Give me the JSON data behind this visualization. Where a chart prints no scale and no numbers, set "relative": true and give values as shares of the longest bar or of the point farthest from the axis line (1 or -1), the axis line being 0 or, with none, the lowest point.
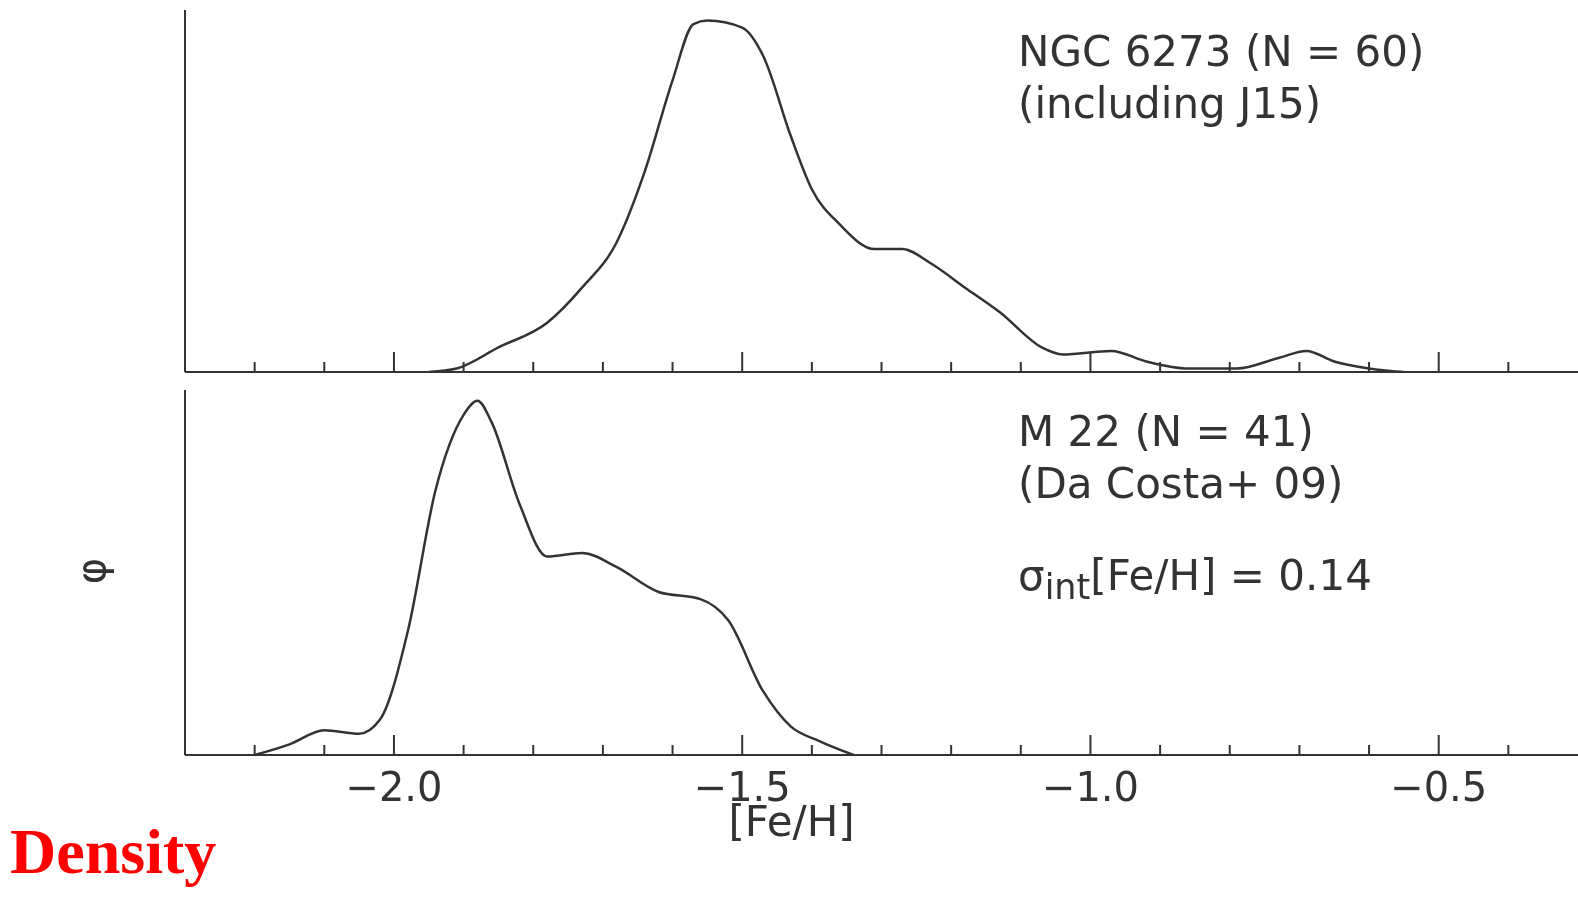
{
  "chart_data": [
    {
      "type": "line",
      "relative": true,
      "xlim": [
        -2.3,
        -0.3
      ],
      "tick_labels": false,
      "marker": "none",
      "line_style": "solid",
      "xticks": [
        {
          "value": -2.2,
          "label": null
        },
        {
          "value": -2.1,
          "label": null
        },
        -2,
        {
          "value": -1.9,
          "label": null
        },
        {
          "value": -1.8,
          "label": null
        },
        {
          "value": -1.7,
          "label": null
        },
        {
          "value": -1.6,
          "label": null
        },
        -1.5,
        {
          "value": -1.4,
          "label": null
        },
        {
          "value": -1.3,
          "label": null
        },
        {
          "value": -1.2,
          "label": null
        },
        {
          "value": -1.1,
          "label": null
        },
        -1,
        {
          "value": -0.9,
          "label": null
        },
        {
          "value": -0.8,
          "label": null
        },
        {
          "value": -0.7,
          "label": null
        },
        {
          "value": -0.6,
          "label": null
        },
        -0.5,
        {
          "value": -0.4,
          "label": null
        }
      ],
      "series": [
        {
          "color": "#333333",
          "x": [
            -1.95,
            -1.91,
            -1.85,
            -1.78,
            -1.73,
            -1.68,
            -1.64,
            -1.6,
            -1.57,
            -1.55,
            -1.5,
            -1.47,
            -1.43,
            -1.4,
            -1.36,
            -1.31,
            -1.27,
            -1.23,
            -1.18,
            -1.13,
            -1.07,
            -1.04,
            -0.97,
            -0.92,
            -0.86,
            -0.79,
            -0.73,
            -0.69,
            -0.65,
            -0.6,
            -0.55
          ],
          "values": [
            0,
            0.01,
            0.07,
            0.14,
            0.24,
            0.37,
            0.57,
            0.83,
            0.99,
            1,
            0.98,
            0.9,
            0.67,
            0.52,
            0.42,
            0.35,
            0.35,
            0.31,
            0.24,
            0.17,
            0.07,
            0.05,
            0.06,
            0.03,
            0.01,
            0.01,
            0.04,
            0.06,
            0.03,
            0.01,
            0
          ]
        }
      ],
      "annotations": [
        "NGC 6273 (N = 60)",
        "(including J15)"
      ]
    },
    {
      "type": "line",
      "relative": true,
      "xlim": [
        -2.3,
        -0.3
      ],
      "tick_labels": "x",
      "marker": "none",
      "line_style": "solid",
      "xlabel": "[Fe/H]",
      "ylabel": "φ",
      "xticks": [
        {
          "value": -2.2,
          "label": null
        },
        {
          "value": -2.1,
          "label": null
        },
        {
          "value": -2.0,
          "label": "−2.0"
        },
        {
          "value": -1.9,
          "label": null
        },
        {
          "value": -1.8,
          "label": null
        },
        {
          "value": -1.7,
          "label": null
        },
        {
          "value": -1.6,
          "label": null
        },
        {
          "value": -1.5,
          "label": "−1.5"
        },
        {
          "value": -1.4,
          "label": null
        },
        {
          "value": -1.3,
          "label": null
        },
        {
          "value": -1.2,
          "label": null
        },
        {
          "value": -1.1,
          "label": null
        },
        {
          "value": -1.0,
          "label": "−1.0"
        },
        {
          "value": -0.9,
          "label": null
        },
        {
          "value": -0.8,
          "label": null
        },
        {
          "value": -0.7,
          "label": null
        },
        {
          "value": -0.6,
          "label": null
        },
        {
          "value": -0.5,
          "label": "−0.5"
        },
        {
          "value": -0.4,
          "label": null
        }
      ],
      "series": [
        {
          "color": "#333333",
          "x": [
            -2.2,
            -2.15,
            -2.1,
            -2.05,
            -2.02,
            -1.98,
            -1.94,
            -1.9,
            -1.88,
            -1.86,
            -1.82,
            -1.78,
            -1.73,
            -1.68,
            -1.62,
            -1.56,
            -1.52,
            -1.47,
            -1.43,
            -1.39,
            -1.34
          ],
          "values": [
            0,
            0.03,
            0.07,
            0.06,
            0.1,
            0.35,
            0.75,
            0.96,
            1,
            0.94,
            0.71,
            0.56,
            0.57,
            0.53,
            0.46,
            0.44,
            0.38,
            0.18,
            0.08,
            0.04,
            0
          ]
        }
      ],
      "annotations": [
        "M 22 (N = 41)",
        "(Da Costa+ 09)",
        "σ$_{int}$[Fe/H] = 0.14",
        "Density"
      ]
    }
  ]
}
